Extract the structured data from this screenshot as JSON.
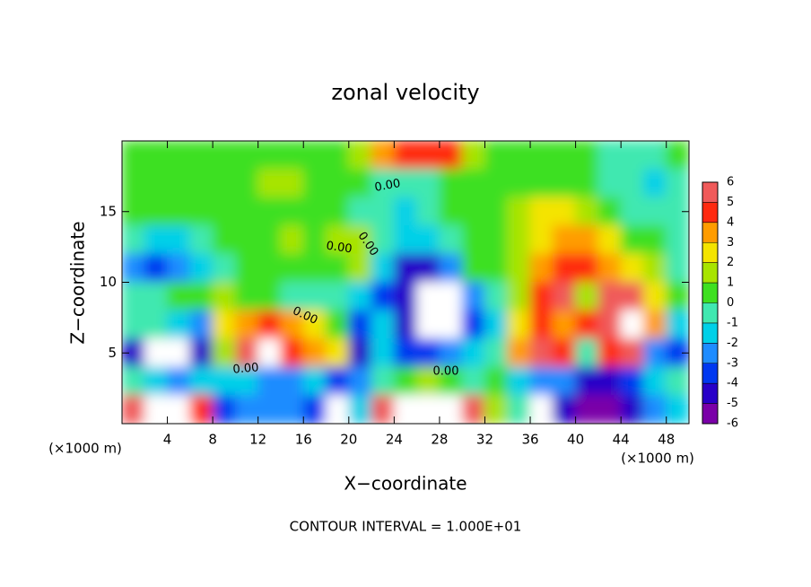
{
  "chart_data": {
    "type": "heatmap",
    "title": "zonal velocity",
    "xlabel": "X−coordinate",
    "ylabel": "Z−coordinate",
    "x_unit_label": "(×1000 m)",
    "x_unit_label_right": "(×1000 m)",
    "footer": "CONTOUR INTERVAL = 1.000E+01",
    "contour_labels": [
      "0.00",
      "0.00",
      "0.00",
      "0.00",
      "0.00",
      "0.00"
    ],
    "xlim": [
      0,
      50
    ],
    "ylim": [
      0,
      20
    ],
    "xticks": [
      4,
      8,
      12,
      16,
      20,
      24,
      28,
      32,
      36,
      40,
      44,
      48
    ],
    "yticks": [
      5,
      10,
      15
    ],
    "clim": [
      -6,
      6
    ],
    "cticks": [
      6,
      5,
      4,
      3,
      2,
      1,
      0,
      -1,
      -2,
      -3,
      -4,
      -5,
      -6
    ],
    "colors": [
      "#7a00a8",
      "#2800c8",
      "#0038f0",
      "#1e8cff",
      "#00d0e8",
      "#40e8b0",
      "#3ee020",
      "#a8e400",
      "#f4e400",
      "#ff9c00",
      "#ff2a10",
      "#f05a5a"
    ],
    "x": [
      1,
      3,
      5,
      7,
      9,
      11,
      13,
      15,
      17,
      19,
      21,
      23,
      25,
      27,
      29,
      31,
      33,
      35,
      37,
      39,
      41,
      43,
      45,
      47,
      49
    ],
    "y": [
      19,
      17,
      15,
      13,
      11,
      9,
      7,
      5,
      3,
      1
    ],
    "z": [
      [
        0,
        0,
        0,
        0.5,
        0.5,
        0.5,
        0.5,
        0.5,
        0.5,
        0.5,
        1,
        3,
        4,
        4,
        4,
        1,
        0.5,
        0.5,
        0,
        0,
        0,
        -0.5,
        -0.5,
        -0.5,
        0
      ],
      [
        0,
        0,
        0.5,
        0.5,
        0,
        0.5,
        1,
        1,
        0.5,
        0.5,
        0,
        -0.5,
        -1,
        -0.5,
        0,
        0,
        0.5,
        0.5,
        0,
        0,
        0,
        -1,
        -1,
        -1.5,
        -0.5
      ],
      [
        0,
        0,
        0,
        0,
        0.5,
        0.5,
        0.5,
        0.5,
        0.5,
        0,
        -0.5,
        -1,
        -1.5,
        -1,
        0,
        0,
        0.5,
        1,
        2,
        2.5,
        1.5,
        0,
        -0.5,
        -1,
        -0.5
      ],
      [
        -1,
        -2,
        -1.5,
        -0.5,
        0,
        0,
        0.5,
        1,
        0.5,
        1,
        1,
        -1,
        -2,
        -2,
        -1,
        0,
        0.5,
        1,
        2.5,
        3,
        3,
        2,
        0.5,
        0,
        -0.5
      ],
      [
        -3,
        -3.5,
        -3,
        -2,
        -1,
        0,
        0.5,
        0.5,
        0.5,
        0,
        1,
        -2,
        -5,
        -5,
        -3,
        0,
        0,
        1,
        3,
        4,
        4,
        3.5,
        2,
        1,
        -0.5
      ],
      [
        -1,
        -0.5,
        0,
        0.5,
        1,
        0.5,
        0,
        -1,
        -0.5,
        -1,
        -2,
        -4,
        -5,
        7,
        7,
        -3,
        -1,
        1,
        4,
        5,
        1,
        5,
        5,
        2,
        0
      ],
      [
        -0.5,
        -1,
        -2,
        -3,
        2,
        3,
        4,
        3,
        2,
        0,
        -4,
        -2,
        -5,
        7,
        7,
        -4,
        -2,
        2,
        4,
        3,
        4,
        6,
        7,
        3,
        -2
      ],
      [
        -5,
        7,
        7,
        -5,
        1,
        5,
        7,
        4,
        3,
        2,
        -5,
        -2,
        -4,
        -4,
        -3,
        -2,
        -1,
        3,
        5,
        4,
        -1,
        4,
        5,
        -3,
        -4
      ],
      [
        -1,
        -2,
        -3,
        -2,
        -2,
        -2,
        -3,
        -3,
        -2,
        -4,
        -3,
        -1,
        0,
        1,
        0,
        -0.5,
        0,
        -2,
        -3,
        -3,
        -5,
        -5,
        -4,
        -2,
        -1
      ],
      [
        5,
        7,
        7,
        4,
        -4,
        -3,
        -3,
        -3,
        -4,
        7,
        -2,
        5,
        7,
        7,
        7,
        5,
        1,
        -1,
        7,
        -5,
        -6,
        -6,
        -5,
        -3,
        -2
      ]
    ]
  }
}
